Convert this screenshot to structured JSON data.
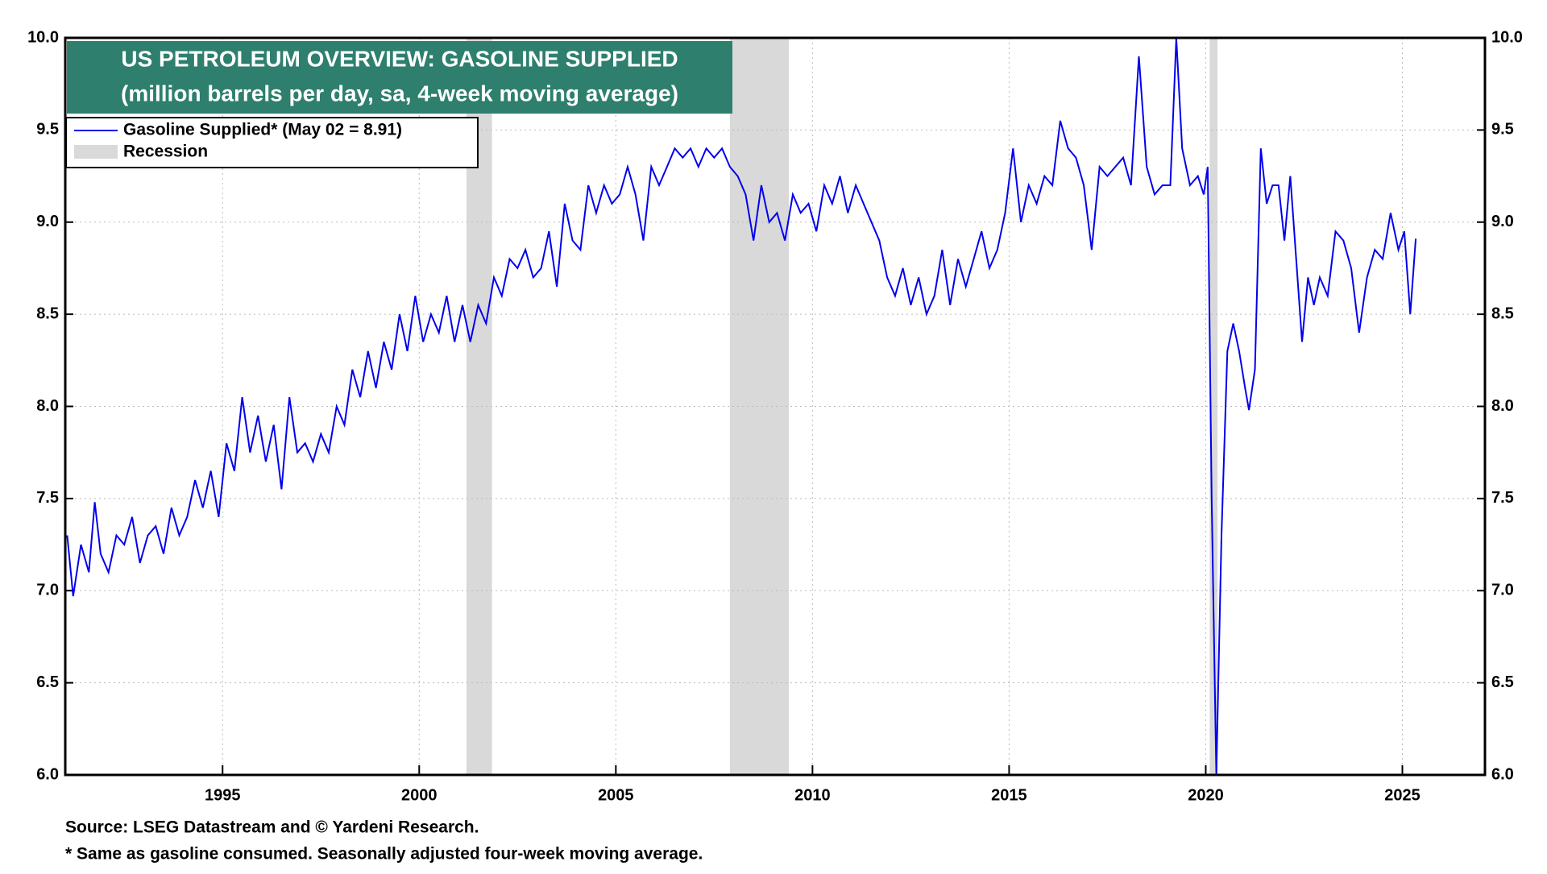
{
  "chart_data": {
    "type": "line",
    "title": "US PETROLEUM OVERVIEW: GASOLINE SUPPLIED",
    "subtitle": "(million barrels per day, sa, 4-week moving average)",
    "legend_position": "upper left",
    "grid": true,
    "xlim": [
      1991.0,
      2027.1
    ],
    "xticks": [
      1995,
      2000,
      2005,
      2010,
      2015,
      2020,
      2025
    ],
    "ylim": [
      6.0,
      10.0
    ],
    "yticks": [
      {
        "value": 6.0,
        "label": "6.0"
      },
      {
        "value": 6.5,
        "label": "6.5"
      },
      {
        "value": 7.0,
        "label": "7.0"
      },
      {
        "value": 7.5,
        "label": "7.5"
      },
      {
        "value": 8.0,
        "label": "8.0"
      },
      {
        "value": 8.5,
        "label": "8.5"
      },
      {
        "value": 9.0,
        "label": "9.0"
      },
      {
        "value": 9.5,
        "label": "9.5"
      },
      {
        "value": 10.0,
        "label": "10.0"
      }
    ],
    "recession": {
      "name": "Recession",
      "color": "#d9d9d9",
      "periods": [
        [
          2001.2,
          2001.85
        ],
        [
          2007.9,
          2009.4
        ],
        [
          2020.1,
          2020.3
        ]
      ]
    },
    "series": [
      {
        "name": "Gasoline Supplied* (May 02 = 8.91)",
        "color": "#0000ee",
        "x": [
          1991.05,
          1991.2,
          1991.4,
          1991.6,
          1991.75,
          1991.9,
          1992.1,
          1992.3,
          1992.5,
          1992.7,
          1992.9,
          1993.1,
          1993.3,
          1993.5,
          1993.7,
          1993.9,
          1994.1,
          1994.3,
          1994.5,
          1994.7,
          1994.9,
          1995.1,
          1995.3,
          1995.5,
          1995.7,
          1995.9,
          1996.1,
          1996.3,
          1996.5,
          1996.7,
          1996.9,
          1997.1,
          1997.3,
          1997.5,
          1997.7,
          1997.9,
          1998.1,
          1998.3,
          1998.5,
          1998.7,
          1998.9,
          1999.1,
          1999.3,
          1999.5,
          1999.7,
          1999.9,
          2000.1,
          2000.3,
          2000.5,
          2000.7,
          2000.9,
          2001.1,
          2001.3,
          2001.5,
          2001.7,
          2001.9,
          2002.1,
          2002.3,
          2002.5,
          2002.7,
          2002.9,
          2003.1,
          2003.3,
          2003.5,
          2003.7,
          2003.9,
          2004.1,
          2004.3,
          2004.5,
          2004.7,
          2004.9,
          2005.1,
          2005.3,
          2005.5,
          2005.7,
          2005.9,
          2006.1,
          2006.3,
          2006.5,
          2006.7,
          2006.9,
          2007.1,
          2007.3,
          2007.5,
          2007.7,
          2007.9,
          2008.1,
          2008.3,
          2008.5,
          2008.7,
          2008.9,
          2009.1,
          2009.3,
          2009.5,
          2009.7,
          2009.9,
          2010.1,
          2010.3,
          2010.5,
          2010.7,
          2010.9,
          2011.1,
          2011.3,
          2011.5,
          2011.7,
          2011.9,
          2012.1,
          2012.3,
          2012.5,
          2012.7,
          2012.9,
          2013.1,
          2013.3,
          2013.5,
          2013.7,
          2013.9,
          2014.1,
          2014.3,
          2014.5,
          2014.7,
          2014.9,
          2015.1,
          2015.3,
          2015.5,
          2015.7,
          2015.9,
          2016.1,
          2016.3,
          2016.5,
          2016.7,
          2016.9,
          2017.1,
          2017.3,
          2017.5,
          2017.7,
          2017.9,
          2018.1,
          2018.3,
          2018.5,
          2018.7,
          2018.9,
          2019.1,
          2019.25,
          2019.4,
          2019.6,
          2019.8,
          2019.95,
          2020.05,
          2020.15,
          2020.27,
          2020.4,
          2020.55,
          2020.7,
          2020.85,
          2021.0,
          2021.1,
          2021.25,
          2021.4,
          2021.55,
          2021.7,
          2021.85,
          2022.0,
          2022.15,
          2022.3,
          2022.45,
          2022.6,
          2022.75,
          2022.9,
          2023.1,
          2023.3,
          2023.5,
          2023.7,
          2023.9,
          2024.1,
          2024.3,
          2024.5,
          2024.7,
          2024.9,
          2025.05,
          2025.2,
          2025.34
        ],
        "values": [
          7.3,
          6.97,
          7.25,
          7.1,
          7.48,
          7.2,
          7.1,
          7.3,
          7.25,
          7.4,
          7.15,
          7.3,
          7.35,
          7.2,
          7.45,
          7.3,
          7.4,
          7.6,
          7.45,
          7.65,
          7.4,
          7.8,
          7.65,
          8.05,
          7.75,
          7.95,
          7.7,
          7.9,
          7.55,
          8.05,
          7.75,
          7.8,
          7.7,
          7.85,
          7.75,
          8.0,
          7.9,
          8.2,
          8.05,
          8.3,
          8.1,
          8.35,
          8.2,
          8.5,
          8.3,
          8.6,
          8.35,
          8.5,
          8.4,
          8.6,
          8.35,
          8.55,
          8.35,
          8.55,
          8.45,
          8.7,
          8.6,
          8.8,
          8.75,
          8.85,
          8.7,
          8.75,
          8.95,
          8.65,
          9.1,
          8.9,
          8.85,
          9.2,
          9.05,
          9.2,
          9.1,
          9.15,
          9.3,
          9.15,
          8.9,
          9.3,
          9.2,
          9.3,
          9.4,
          9.35,
          9.4,
          9.3,
          9.4,
          9.35,
          9.4,
          9.3,
          9.25,
          9.15,
          8.9,
          9.2,
          9.0,
          9.05,
          8.9,
          9.15,
          9.05,
          9.1,
          8.95,
          9.2,
          9.1,
          9.25,
          9.05,
          9.2,
          9.1,
          9.0,
          8.9,
          8.7,
          8.6,
          8.75,
          8.55,
          8.7,
          8.5,
          8.6,
          8.85,
          8.55,
          8.8,
          8.65,
          8.8,
          8.95,
          8.75,
          8.85,
          9.05,
          9.4,
          9.0,
          9.2,
          9.1,
          9.25,
          9.2,
          9.55,
          9.4,
          9.35,
          9.2,
          8.85,
          9.3,
          9.25,
          9.3,
          9.35,
          9.2,
          9.9,
          9.3,
          9.15,
          9.2,
          9.2,
          10.0,
          9.4,
          9.2,
          9.25,
          9.15,
          9.3,
          7.5,
          6.0,
          7.3,
          8.3,
          8.45,
          8.3,
          8.1,
          7.98,
          8.2,
          9.4,
          9.1,
          9.2,
          9.2,
          8.9,
          9.25,
          8.8,
          8.35,
          8.7,
          8.55,
          8.7,
          8.6,
          8.95,
          8.9,
          8.75,
          8.4,
          8.7,
          8.85,
          8.8,
          9.05,
          8.85,
          8.95,
          8.5,
          8.91
        ]
      }
    ],
    "source": "Source: LSEG Datastream and © Yardeni Research.",
    "note": "* Same as gasoline consumed. Seasonally adjusted four-week moving average."
  }
}
